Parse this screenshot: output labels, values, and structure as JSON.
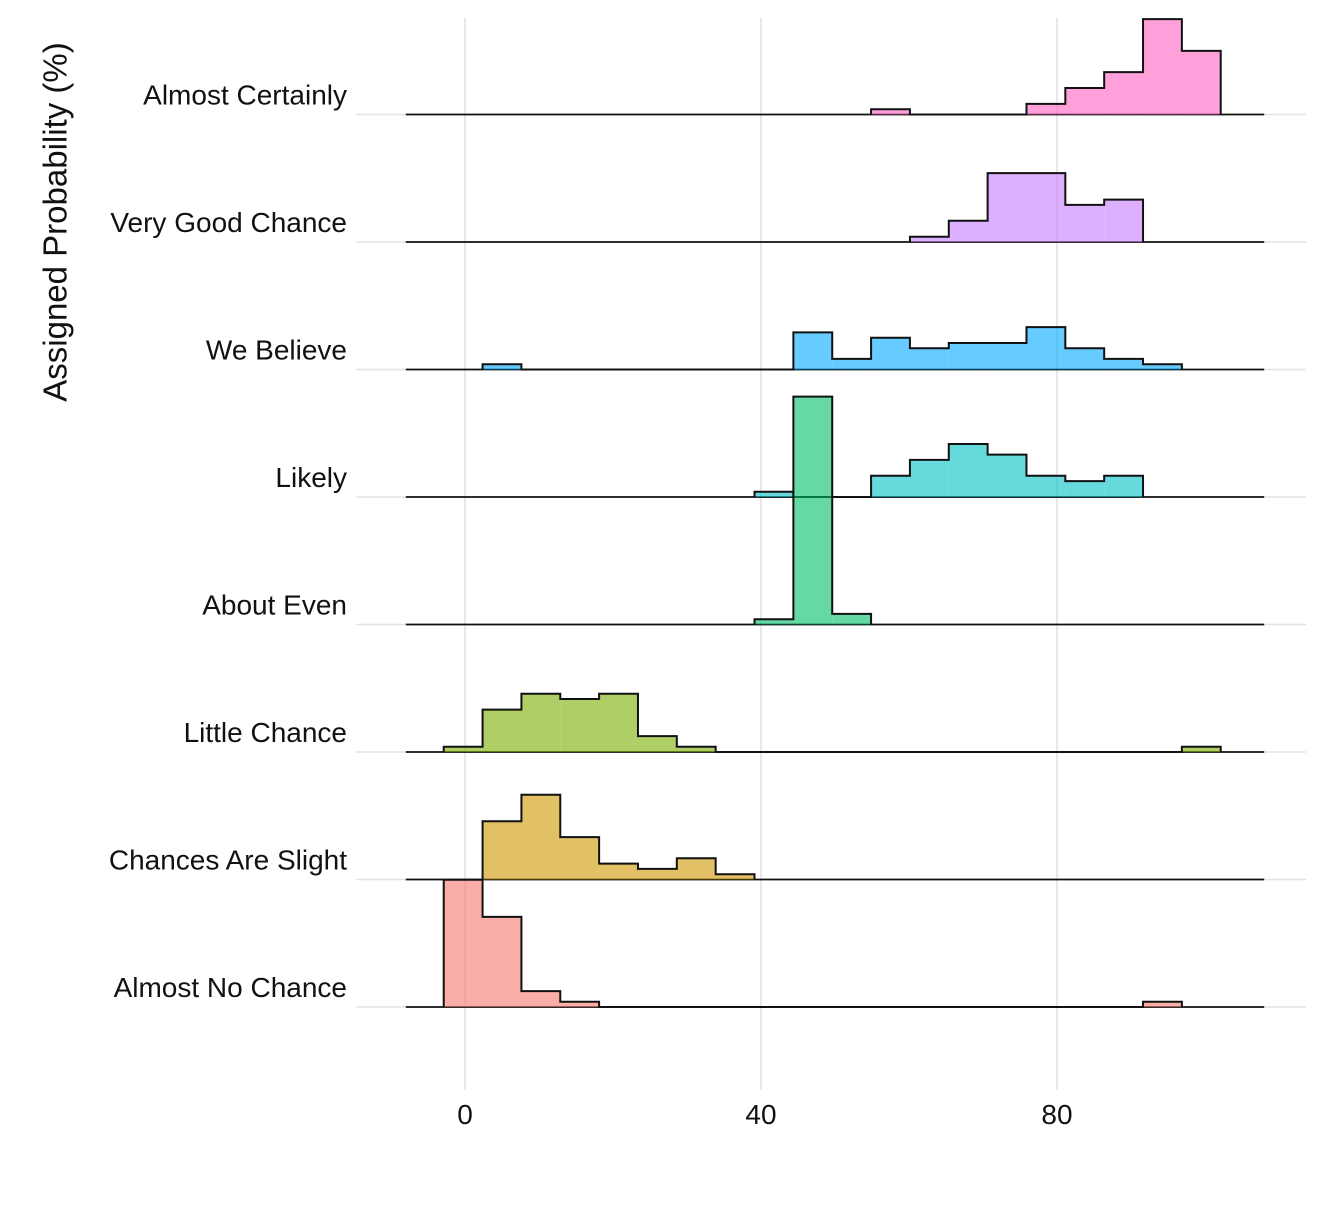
{
  "chart_data": {
    "type": "ridgeline-histogram",
    "title": "",
    "xlabel": "",
    "ylabel": "Assigned Probability (%)",
    "x_ticks": [
      0,
      40,
      80
    ],
    "x_range": [
      -8,
      108
    ],
    "bin_width": 5.25,
    "bin_edges": [
      -2.875,
      2.375,
      7.625,
      12.875,
      18.125,
      23.375,
      28.625,
      33.875,
      39.125,
      44.375,
      49.625,
      54.875,
      60.125,
      65.375,
      70.625,
      75.875,
      81.125,
      86.375,
      91.625,
      96.875,
      102.125
    ],
    "grid": true,
    "legend": "none",
    "categories": [
      "Almost No Chance",
      "Chances Are Slight",
      "Little Chance",
      "About Even",
      "Likely",
      "We Believe",
      "Very Good Chance",
      "Almost Certainly"
    ],
    "series": [
      {
        "label_index": 7,
        "color": "#ff61c3",
        "counts": [
          0,
          0,
          0,
          0,
          0,
          0,
          0,
          0,
          0,
          0,
          0,
          1,
          0,
          0,
          0,
          2,
          5,
          8,
          18,
          12
        ]
      },
      {
        "label_index": 6,
        "color": "#c77cff",
        "counts": [
          0,
          0,
          0,
          0,
          0,
          0,
          0,
          0,
          0,
          0,
          0,
          0,
          1,
          4,
          13,
          13,
          7,
          8,
          0,
          0
        ]
      },
      {
        "label_index": 5,
        "color": "#00a9ff",
        "counts": [
          0,
          1,
          0,
          0,
          0,
          0,
          0,
          0,
          0,
          7,
          2,
          6,
          4,
          5,
          5,
          8,
          4,
          2,
          1,
          0
        ]
      },
      {
        "label_index": 4,
        "color": "#00bfc4",
        "counts": [
          0,
          0,
          0,
          0,
          0,
          0,
          0,
          0,
          1,
          0,
          0,
          4,
          7,
          10,
          8,
          4,
          3,
          4,
          0,
          0
        ]
      },
      {
        "label_index": 3,
        "color": "#00be67",
        "counts": [
          0,
          0,
          0,
          0,
          0,
          0,
          0,
          0,
          1,
          43,
          2,
          0,
          0,
          0,
          0,
          0,
          0,
          0,
          0,
          0
        ]
      },
      {
        "label_index": 2,
        "color": "#7cae00",
        "counts": [
          1,
          8,
          11,
          10,
          11,
          3,
          1,
          0,
          0,
          0,
          0,
          0,
          0,
          0,
          0,
          0,
          0,
          0,
          0,
          1
        ]
      },
      {
        "label_index": 1,
        "color": "#cd9600",
        "counts": [
          0,
          11,
          16,
          8,
          3,
          2,
          4,
          1,
          0,
          0,
          0,
          0,
          0,
          0,
          0,
          0,
          0,
          0,
          0,
          0
        ]
      },
      {
        "label_index": 0,
        "color": "#f8766d",
        "counts": [
          24,
          17,
          3,
          1,
          0,
          0,
          0,
          0,
          0,
          0,
          0,
          0,
          0,
          0,
          0,
          0,
          0,
          0,
          1,
          0
        ]
      }
    ]
  }
}
